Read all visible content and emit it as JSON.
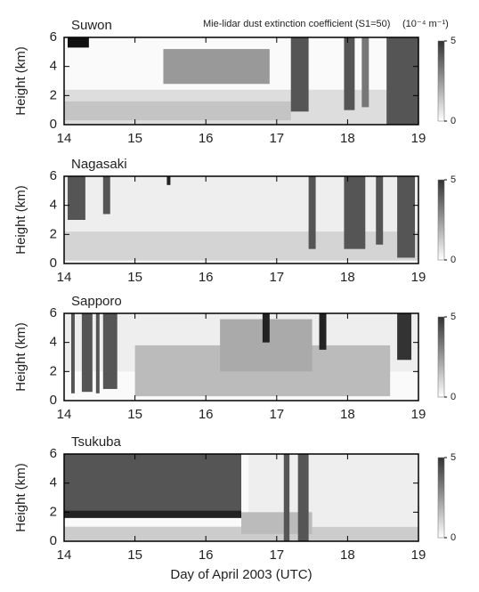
{
  "chart_data": [
    {
      "type": "heatmap",
      "title": "Suwon",
      "annotation": "Mie-lidar dust extinction coefficient (S1=50)",
      "unit": "(10⁻⁴ m⁻¹)",
      "ylabel": "Height (km)",
      "xlim": [
        14,
        19
      ],
      "xticks": [
        14,
        15,
        16,
        17,
        18,
        19
      ],
      "ylim": [
        0,
        6
      ],
      "yticks": [
        0,
        2,
        4,
        6
      ],
      "colorbar_lim": [
        0,
        5
      ],
      "colorbar_ticks": [
        0,
        5
      ]
    },
    {
      "type": "heatmap",
      "title": "Nagasaki",
      "ylabel": "Height (km)",
      "xlim": [
        14,
        19
      ],
      "xticks": [
        14,
        15,
        16,
        17,
        18,
        19
      ],
      "ylim": [
        0,
        6
      ],
      "yticks": [
        0,
        2,
        4,
        6
      ],
      "colorbar_lim": [
        0,
        5
      ],
      "colorbar_ticks": [
        0,
        5
      ]
    },
    {
      "type": "heatmap",
      "title": "Sapporo",
      "ylabel": "Height (km)",
      "xlim": [
        14,
        19
      ],
      "xticks": [
        14,
        15,
        16,
        17,
        18,
        19
      ],
      "ylim": [
        0,
        6
      ],
      "yticks": [
        0,
        2,
        4,
        6
      ],
      "colorbar_lim": [
        0,
        5
      ],
      "colorbar_ticks": [
        0,
        5
      ]
    },
    {
      "type": "heatmap",
      "title": "Tsukuba",
      "ylabel": "Height (km)",
      "xlabel": "Day of April 2003 (UTC)",
      "xlim": [
        14,
        19
      ],
      "xticks": [
        14,
        15,
        16,
        17,
        18,
        19
      ],
      "ylim": [
        0,
        6
      ],
      "yticks": [
        0,
        2,
        4,
        6
      ],
      "colorbar_lim": [
        0,
        5
      ],
      "colorbar_ticks": [
        0,
        5
      ]
    }
  ]
}
